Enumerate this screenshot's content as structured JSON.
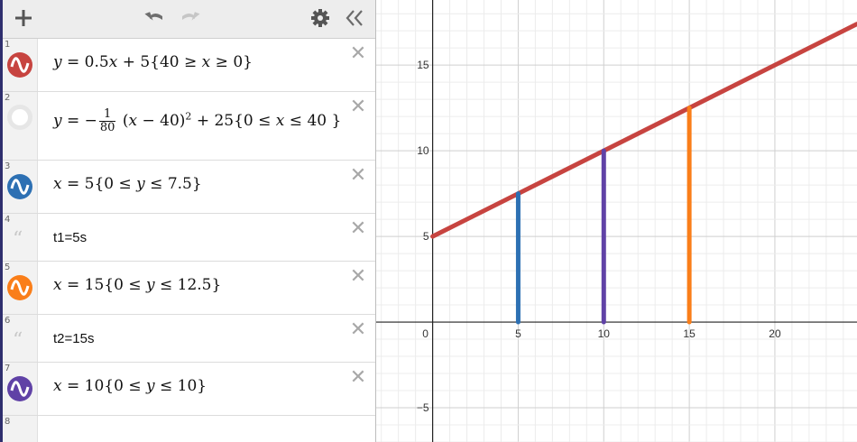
{
  "toolbar": {
    "add_icon": "plus-icon",
    "undo_icon": "undo-icon",
    "redo_icon": "redo-icon",
    "settings_icon": "gear-icon",
    "collapse_icon": "double-chevron-left-icon"
  },
  "expressions": [
    {
      "num": "1",
      "type": "expression",
      "color": "#c74440",
      "latex": "y=0.5x+5\\left\\{40\\ge x\\ge0\\right\\}",
      "display": {
        "a": "y",
        "b": " = 0.5",
        "c": "x",
        "d": " + 5{40 ≥ ",
        "e": "x",
        "f": " ≥ 0}"
      }
    },
    {
      "num": "2",
      "type": "expression",
      "color": "",
      "hidden": true,
      "display": {
        "a": "y",
        "b": " = −",
        "num": "1",
        "den": "80",
        "c": " (",
        "d": "x",
        "e": " − 40)",
        "sup": "2",
        "f": " + 25{0 ≤ ",
        "g": "x",
        "h": " ≤ 40 }"
      }
    },
    {
      "num": "3",
      "type": "expression",
      "color": "#2d70b3",
      "display": {
        "a": "x",
        "b": " = 5{0 ≤ ",
        "c": "y",
        "d": " ≤ 7.5}"
      }
    },
    {
      "num": "4",
      "type": "note",
      "text": "t1=5s"
    },
    {
      "num": "5",
      "type": "expression",
      "color": "#fa7e19",
      "display": {
        "a": "x",
        "b": " = 15{0 ≤ ",
        "c": "y",
        "d": " ≤ 12.5}"
      }
    },
    {
      "num": "6",
      "type": "note",
      "text": "t2=15s"
    },
    {
      "num": "7",
      "type": "expression",
      "color": "#6042a6",
      "display": {
        "a": "x",
        "b": " = 10{0 ≤ ",
        "c": "y",
        "d": " ≤ 10}"
      }
    },
    {
      "num": "8",
      "type": "empty"
    }
  ],
  "graph": {
    "x_ticks": [
      "0",
      "5",
      "10",
      "15",
      "20"
    ],
    "y_ticks": [
      "15",
      "10",
      "5",
      "-5"
    ],
    "xlim": [
      -3.3,
      24.8
    ],
    "ylim": [
      -7.0,
      18.8
    ],
    "line": {
      "color": "#c74440",
      "slope": 0.5,
      "intercept": 5,
      "x_min": 0,
      "x_max": 40
    },
    "segments": [
      {
        "x": 5,
        "y_max": 7.5,
        "color": "#2d70b3"
      },
      {
        "x": 10,
        "y_max": 10,
        "color": "#6042a6"
      },
      {
        "x": 15,
        "y_max": 12.5,
        "color": "#fa7e19"
      }
    ]
  }
}
